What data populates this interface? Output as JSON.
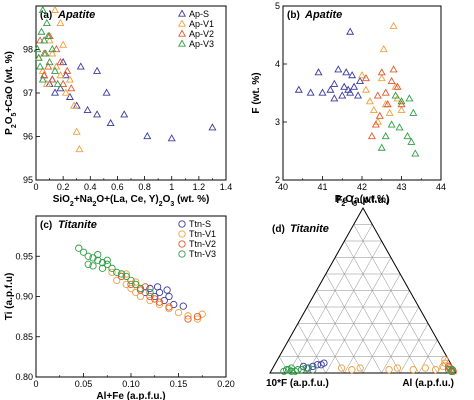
{
  "colors": {
    "S": "#3a3a9e",
    "V1": "#f0a040",
    "V2": "#e4572e",
    "V3": "#2f9e44"
  },
  "chart_data": [
    {
      "id": "a",
      "type": "scatter",
      "panel_label": "(a)",
      "title": "Apatite",
      "xlabel": "SiO2+Na2O+(La, Ce, Y)2O3 (wt. %)",
      "ylabel": "P2O5+CaO (wt. %)",
      "xlim": [
        0,
        1.4
      ],
      "ylim": [
        95,
        99
      ],
      "xticks": [
        "0",
        "0.2",
        "0.4",
        "0.6",
        "0.8",
        "1",
        "1.2",
        "1.4"
      ],
      "yticks": [
        "95",
        "96",
        "97",
        "98"
      ],
      "marker": "triangle",
      "legend_position": "top-right",
      "series": [
        {
          "name": "Ap-S",
          "key": "S",
          "points": [
            [
              0.06,
              97.4
            ],
            [
              0.12,
              97.3
            ],
            [
              0.18,
              97.1
            ],
            [
              0.25,
              96.9
            ],
            [
              0.3,
              96.7
            ],
            [
              0.38,
              96.6
            ],
            [
              0.45,
              96.5
            ],
            [
              0.55,
              96.3
            ],
            [
              0.65,
              96.5
            ],
            [
              0.82,
              96.0
            ],
            [
              1.0,
              95.95
            ],
            [
              1.3,
              96.2
            ],
            [
              0.45,
              97.5
            ],
            [
              0.33,
              97.6
            ],
            [
              0.22,
              97.4
            ],
            [
              0.52,
              97.0
            ],
            [
              0.1,
              97.2
            ],
            [
              0.2,
              97.7
            ],
            [
              0.14,
              97.0
            ]
          ]
        },
        {
          "name": "Ap-V1",
          "key": "V1",
          "points": [
            [
              0.02,
              97.8
            ],
            [
              0.05,
              97.5
            ],
            [
              0.08,
              97.2
            ],
            [
              0.1,
              98.2
            ],
            [
              0.12,
              97.9
            ],
            [
              0.15,
              97.6
            ],
            [
              0.18,
              98.6
            ],
            [
              0.2,
              98.1
            ],
            [
              0.25,
              97.3
            ],
            [
              0.28,
              96.7
            ],
            [
              0.3,
              96.1
            ],
            [
              0.32,
              95.7
            ],
            [
              0.22,
              97.0
            ],
            [
              0.18,
              97.4
            ],
            [
              0.14,
              98.9
            ]
          ]
        },
        {
          "name": "Ap-V2",
          "key": "V2",
          "points": [
            [
              0.03,
              98.2
            ],
            [
              0.06,
              97.9
            ],
            [
              0.09,
              97.6
            ],
            [
              0.12,
              97.3
            ],
            [
              0.15,
              98.0
            ],
            [
              0.18,
              97.7
            ],
            [
              0.2,
              97.2
            ],
            [
              0.23,
              97.5
            ],
            [
              0.26,
              97.1
            ],
            [
              0.06,
              97.4
            ],
            [
              0.1,
              98.3
            ]
          ]
        },
        {
          "name": "Ap-V3",
          "key": "V3",
          "points": [
            [
              0.01,
              98.0
            ],
            [
              0.02,
              97.8
            ],
            [
              0.03,
              97.6
            ],
            [
              0.04,
              98.4
            ],
            [
              0.05,
              98.9
            ],
            [
              0.06,
              98.2
            ],
            [
              0.07,
              97.9
            ],
            [
              0.08,
              98.6
            ],
            [
              0.09,
              98.3
            ],
            [
              0.1,
              97.7
            ],
            [
              0.12,
              98.0
            ],
            [
              0.14,
              97.5
            ],
            [
              0.16,
              97.2
            ],
            [
              0.05,
              97.3
            ]
          ]
        }
      ]
    },
    {
      "id": "b",
      "type": "scatter",
      "panel_label": "(b)",
      "title": "Apatite",
      "xlabel": "P2O5 (wt.%)",
      "ylabel": "F (wt. %)",
      "xlim": [
        40,
        44
      ],
      "ylim": [
        2,
        5
      ],
      "xticks": [
        "40",
        "41",
        "42",
        "43",
        "44"
      ],
      "yticks": [
        "2",
        "3",
        "4",
        "5"
      ],
      "marker": "triangle",
      "series": [
        {
          "name": "Ap-S",
          "key": "S",
          "points": [
            [
              40.4,
              3.55
            ],
            [
              40.7,
              3.5
            ],
            [
              40.9,
              3.85
            ],
            [
              41.0,
              3.5
            ],
            [
              41.2,
              3.55
            ],
            [
              41.3,
              3.65
            ],
            [
              41.4,
              3.9
            ],
            [
              41.5,
              3.45
            ],
            [
              41.6,
              3.85
            ],
            [
              41.7,
              3.5
            ],
            [
              41.75,
              3.8
            ],
            [
              41.8,
              3.6
            ],
            [
              41.9,
              3.45
            ],
            [
              41.55,
              3.6
            ],
            [
              41.65,
              3.55
            ],
            [
              41.7,
              4.55
            ],
            [
              41.95,
              3.7
            ],
            [
              41.3,
              3.4
            ]
          ]
        },
        {
          "name": "Ap-V1",
          "key": "V1",
          "points": [
            [
              42.0,
              3.8
            ],
            [
              42.1,
              3.55
            ],
            [
              42.2,
              3.35
            ],
            [
              42.3,
              3.2
            ],
            [
              42.4,
              3.0
            ],
            [
              42.5,
              3.75
            ],
            [
              42.6,
              3.3
            ],
            [
              42.7,
              3.15
            ],
            [
              42.8,
              4.65
            ],
            [
              42.85,
              3.6
            ],
            [
              42.9,
              3.4
            ],
            [
              43.0,
              3.2
            ],
            [
              42.55,
              4.25
            ]
          ]
        },
        {
          "name": "Ap-V2",
          "key": "V2",
          "points": [
            [
              42.1,
              3.75
            ],
            [
              42.25,
              2.75
            ],
            [
              42.35,
              2.95
            ],
            [
              42.45,
              3.1
            ],
            [
              42.5,
              3.85
            ],
            [
              42.6,
              3.5
            ],
            [
              42.65,
              3.3
            ],
            [
              42.75,
              3.7
            ],
            [
              42.8,
              3.9
            ],
            [
              42.9,
              3.6
            ],
            [
              43.0,
              3.3
            ],
            [
              42.4,
              3.45
            ]
          ]
        },
        {
          "name": "Ap-V3",
          "key": "V3",
          "points": [
            [
              42.5,
              2.55
            ],
            [
              42.6,
              2.75
            ],
            [
              42.75,
              2.95
            ],
            [
              42.85,
              3.45
            ],
            [
              43.0,
              3.35
            ],
            [
              43.15,
              2.75
            ],
            [
              43.2,
              3.4
            ],
            [
              43.25,
              2.65
            ],
            [
              43.35,
              2.45
            ],
            [
              42.95,
              2.9
            ],
            [
              43.3,
              3.15
            ]
          ]
        }
      ]
    },
    {
      "id": "c",
      "type": "scatter",
      "panel_label": "(c)",
      "title": "Titanite",
      "xlabel": "Al+Fe (a.p.f.u.)",
      "ylabel": "Ti (a.p.f.u)",
      "xlim": [
        0,
        0.2
      ],
      "ylim": [
        0.8,
        1.0
      ],
      "xticks": [
        "0",
        "0.05",
        "0.10",
        "0.15",
        "0.20"
      ],
      "yticks": [
        "0.80",
        "0.85",
        "0.90",
        "0.95"
      ],
      "marker": "circle",
      "legend_position": "top-right",
      "series": [
        {
          "name": "Ttn-S",
          "key": "S",
          "points": [
            [
              0.115,
              0.905
            ],
            [
              0.12,
              0.91
            ],
            [
              0.125,
              0.9
            ],
            [
              0.13,
              0.905
            ],
            [
              0.135,
              0.895
            ],
            [
              0.14,
              0.9
            ],
            [
              0.145,
              0.89
            ],
            [
              0.155,
              0.888
            ],
            [
              0.128,
              0.912
            ],
            [
              0.138,
              0.908
            ]
          ]
        },
        {
          "name": "Ttn-V1",
          "key": "V1",
          "points": [
            [
              0.08,
              0.93
            ],
            [
              0.085,
              0.92
            ],
            [
              0.09,
              0.925
            ],
            [
              0.095,
              0.915
            ],
            [
              0.1,
              0.91
            ],
            [
              0.105,
              0.905
            ],
            [
              0.11,
              0.9
            ],
            [
              0.12,
              0.895
            ],
            [
              0.13,
              0.89
            ],
            [
              0.14,
              0.885
            ],
            [
              0.15,
              0.88
            ],
            [
              0.16,
              0.876
            ],
            [
              0.17,
              0.872
            ],
            [
              0.175,
              0.878
            ],
            [
              0.095,
              0.928
            ],
            [
              0.105,
              0.918
            ]
          ]
        },
        {
          "name": "Ttn-V2",
          "key": "V2",
          "points": [
            [
              0.09,
              0.925
            ],
            [
              0.1,
              0.915
            ],
            [
              0.11,
              0.908
            ],
            [
              0.12,
              0.9
            ],
            [
              0.13,
              0.893
            ],
            [
              0.14,
              0.887
            ],
            [
              0.16,
              0.872
            ],
            [
              0.17,
              0.875
            ],
            [
              0.115,
              0.912
            ],
            [
              0.125,
              0.897
            ]
          ]
        },
        {
          "name": "Ttn-V3",
          "key": "V3",
          "points": [
            [
              0.045,
              0.96
            ],
            [
              0.05,
              0.955
            ],
            [
              0.055,
              0.95
            ],
            [
              0.06,
              0.948
            ],
            [
              0.065,
              0.945
            ],
            [
              0.07,
              0.942
            ],
            [
              0.075,
              0.94
            ],
            [
              0.08,
              0.935
            ],
            [
              0.085,
              0.93
            ],
            [
              0.09,
              0.928
            ],
            [
              0.095,
              0.925
            ],
            [
              0.1,
              0.92
            ],
            [
              0.105,
              0.915
            ],
            [
              0.11,
              0.91
            ],
            [
              0.12,
              0.905
            ],
            [
              0.055,
              0.94
            ],
            [
              0.06,
              0.938
            ],
            [
              0.07,
              0.935
            ],
            [
              0.075,
              0.945
            ],
            [
              0.065,
              0.952
            ]
          ]
        }
      ]
    },
    {
      "id": "d",
      "type": "ternary",
      "panel_label": "(d)",
      "title": "Titanite",
      "apex_top": "Fe (a.p.f.u.)",
      "apex_left": "10*F (a.p.f.u.)",
      "apex_right": "Al (a.p.f.u.)",
      "grid_divisions": 10,
      "marker": "circle",
      "series": [
        {
          "key": "S",
          "points": [
            [
              0.06,
              0.68,
              0.26
            ],
            [
              0.05,
              0.72,
              0.23
            ],
            [
              0.04,
              0.75,
              0.21
            ],
            [
              0.03,
              0.78,
              0.19
            ],
            [
              0.04,
              0.8,
              0.16
            ],
            [
              0.05,
              0.7,
              0.25
            ]
          ]
        },
        {
          "key": "V1",
          "points": [
            [
              0.02,
              0.55,
              0.43
            ],
            [
              0.03,
              0.5,
              0.47
            ],
            [
              0.02,
              0.35,
              0.63
            ],
            [
              0.03,
              0.3,
              0.67
            ],
            [
              0.02,
              0.22,
              0.76
            ],
            [
              0.03,
              0.15,
              0.82
            ],
            [
              0.02,
              0.1,
              0.88
            ],
            [
              0.04,
              0.05,
              0.91
            ],
            [
              0.06,
              0.03,
              0.91
            ],
            [
              0.08,
              0.02,
              0.9
            ],
            [
              0.03,
              0.6,
              0.37
            ]
          ]
        },
        {
          "key": "V2",
          "points": [
            [
              0.03,
              0.02,
              0.95
            ],
            [
              0.02,
              0.02,
              0.96
            ],
            [
              0.01,
              0.02,
              0.97
            ],
            [
              0.02,
              0.01,
              0.97
            ],
            [
              0.01,
              0.01,
              0.98
            ],
            [
              0.04,
              0.02,
              0.94
            ]
          ]
        },
        {
          "key": "V3",
          "points": [
            [
              0.02,
              0.82,
              0.16
            ],
            [
              0.01,
              0.86,
              0.13
            ],
            [
              0.02,
              0.89,
              0.09
            ],
            [
              0.01,
              0.92,
              0.07
            ],
            [
              0.02,
              0.84,
              0.14
            ],
            [
              0.03,
              0.79,
              0.18
            ],
            [
              0.01,
              0.88,
              0.11
            ],
            [
              0.02,
              0.9,
              0.08
            ],
            [
              0.03,
              0.87,
              0.1
            ],
            [
              0.02,
              0.76,
              0.22
            ],
            [
              0.02,
              0.03,
              0.95
            ],
            [
              0.01,
              0.02,
              0.97
            ],
            [
              0.02,
              0.01,
              0.97
            ]
          ]
        }
      ]
    }
  ]
}
